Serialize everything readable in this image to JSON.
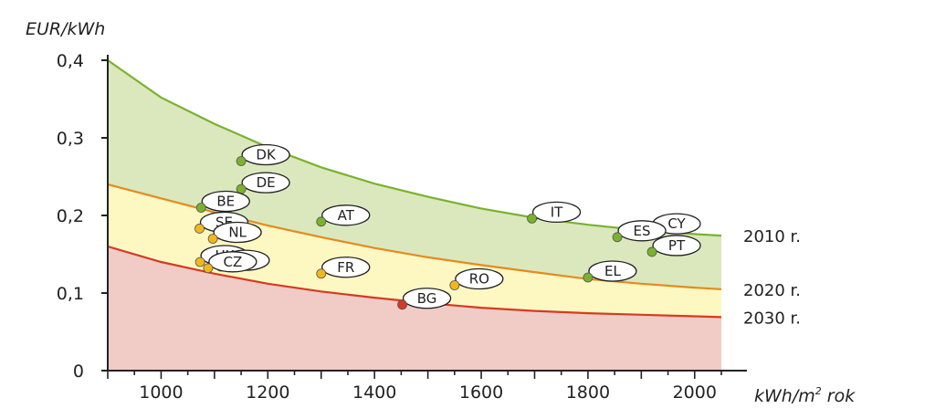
{
  "chart_data": {
    "type": "area",
    "ylabel": "EUR/kWh",
    "xlabel_main": "kWh/m",
    "xlabel_sup": "2",
    "xlabel_tail": " rok",
    "xlim": [
      900,
      2050
    ],
    "ylim": [
      0,
      0.4
    ],
    "x_ticks": [
      1000,
      1200,
      1400,
      1600,
      1800,
      2000
    ],
    "x_tick_labels": [
      "1000",
      "1200",
      "1400",
      "1600",
      "1800",
      "2000"
    ],
    "y_ticks": [
      0,
      0.1,
      0.2,
      0.3,
      0.4
    ],
    "y_tick_labels": [
      "0",
      "0,1",
      "0,2",
      "0,3",
      "0,4"
    ],
    "series": [
      {
        "name": "2010 r.",
        "color": "#7ab22e",
        "fill": "#dbe8bd",
        "x": [
          900,
          1000,
          1100,
          1200,
          1300,
          1400,
          1500,
          1600,
          1700,
          1800,
          1900,
          2000,
          2050
        ],
        "values": [
          0.4,
          0.352,
          0.318,
          0.288,
          0.262,
          0.241,
          0.224,
          0.209,
          0.197,
          0.188,
          0.181,
          0.176,
          0.174
        ]
      },
      {
        "name": "2020 r.",
        "color": "#e58a1f",
        "fill": "#fdf8c2",
        "x": [
          900,
          1000,
          1100,
          1200,
          1300,
          1400,
          1500,
          1600,
          1700,
          1800,
          1900,
          2000,
          2050
        ],
        "values": [
          0.24,
          0.222,
          0.204,
          0.187,
          0.172,
          0.158,
          0.146,
          0.136,
          0.127,
          0.118,
          0.112,
          0.107,
          0.105
        ]
      },
      {
        "name": "2030 r.",
        "color": "#d63a24",
        "fill": "#f1cbc6",
        "x": [
          900,
          1000,
          1100,
          1200,
          1300,
          1400,
          1500,
          1600,
          1700,
          1800,
          1900,
          2000,
          2050
        ],
        "values": [
          0.16,
          0.14,
          0.125,
          0.112,
          0.102,
          0.094,
          0.087,
          0.081,
          0.077,
          0.074,
          0.072,
          0.07,
          0.069
        ]
      }
    ],
    "points": [
      {
        "label": "DK",
        "x": 1150,
        "y": 0.27,
        "color": "#7ab22e"
      },
      {
        "label": "DE",
        "x": 1150,
        "y": 0.234,
        "color": "#7ab22e"
      },
      {
        "label": "BE",
        "x": 1075,
        "y": 0.21,
        "color": "#7ab22e"
      },
      {
        "label": "AT",
        "x": 1300,
        "y": 0.192,
        "color": "#7ab22e"
      },
      {
        "label": "SE",
        "x": 1072,
        "y": 0.183,
        "color": "#f2b81a"
      },
      {
        "label": "NL",
        "x": 1097,
        "y": 0.17,
        "color": "#f2b81a"
      },
      {
        "label": "UK",
        "x": 1073,
        "y": 0.14,
        "color": "#f2b81a"
      },
      {
        "label": "PL",
        "x": 1112,
        "y": 0.134,
        "color": "#f2b81a"
      },
      {
        "label": "CZ",
        "x": 1088,
        "y": 0.132,
        "color": "#f2b81a"
      },
      {
        "label": "FR",
        "x": 1300,
        "y": 0.125,
        "color": "#f2b81a"
      },
      {
        "label": "BG",
        "x": 1452,
        "y": 0.085,
        "color": "#d63a24"
      },
      {
        "label": "RO",
        "x": 1550,
        "y": 0.11,
        "color": "#f2b81a"
      },
      {
        "label": "IT",
        "x": 1695,
        "y": 0.196,
        "color": "#7ab22e"
      },
      {
        "label": "CY",
        "x": 1920,
        "y": 0.181,
        "color": "#7ab22e"
      },
      {
        "label": "ES",
        "x": 1855,
        "y": 0.172,
        "color": "#7ab22e"
      },
      {
        "label": "PT",
        "x": 1920,
        "y": 0.153,
        "color": "#7ab22e"
      },
      {
        "label": "EL",
        "x": 1800,
        "y": 0.12,
        "color": "#7ab22e"
      }
    ]
  }
}
